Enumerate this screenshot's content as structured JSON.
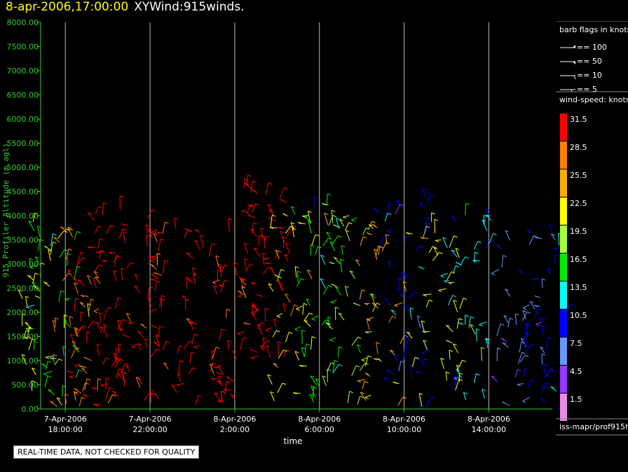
{
  "header": {
    "datetime": "8-apr-2006,17:00:00",
    "name": "XYWind:915winds."
  },
  "notice": "REAL-TIME DATA, NOT CHECKED FOR QUALITY",
  "legend": {
    "barb_title": "barb flags in knots",
    "barbs": [
      "== 100",
      "== 50",
      "== 10",
      "== 5"
    ],
    "speed_title": "wind-speed: knots",
    "speed_bins": [
      {
        "label": "31.5",
        "color": "#ff0000"
      },
      {
        "label": "28.5",
        "color": "#ff7f00"
      },
      {
        "label": "25.5",
        "color": "#ffaa00"
      },
      {
        "label": "22.5",
        "color": "#ffff00"
      },
      {
        "label": "19.5",
        "color": "#aaff33"
      },
      {
        "label": "16.5",
        "color": "#00ee00"
      },
      {
        "label": "13.5",
        "color": "#00ffff"
      },
      {
        "label": "10.5",
        "color": "#0000ff"
      },
      {
        "label": "7.5",
        "color": "#6699ff"
      },
      {
        "label": "4.5",
        "color": "#9933ff"
      },
      {
        "label": "1.5",
        "color": "#ee88ee"
      }
    ],
    "source": "iss-mapr/prof915h"
  },
  "chart_data": {
    "type": "scatter",
    "title": "8-apr-2006,17:00:00  XYWind:915winds.",
    "xlabel": "time",
    "ylabel": "915 Profiler Altitude (m agl)",
    "ylim": [
      0,
      8000
    ],
    "xlim": [
      "2006-04-07 16:50",
      "2006-04-08 17:00"
    ],
    "yticks": [
      "0.00",
      "500.00",
      "1000.00",
      "1500.00",
      "2000.00",
      "2500.00",
      "3000.00",
      "3500.00",
      "4000.00",
      "4500.00",
      "5000.00",
      "5500.00",
      "6000.00",
      "6500.00",
      "7000.00",
      "7500.00",
      "8000.00"
    ],
    "xticks": [
      {
        "date": "7-Apr-2006",
        "time": "18:00:00"
      },
      {
        "date": "7-Apr-2006",
        "time": "22:00:00"
      },
      {
        "date": "8-Apr-2006",
        "time": "2:00:00"
      },
      {
        "date": "8-Apr-2006",
        "time": "6:00:00"
      },
      {
        "date": "8-Apr-2006",
        "time": "10:00:00"
      },
      {
        "date": "8-Apr-2006",
        "time": "14:00:00"
      }
    ],
    "grid": "vertical lines at x ticks",
    "series": [
      {
        "name": "wind barbs (colored by wind speed, knots)",
        "points": [
          {
            "t": "2006-04-07 17:00",
            "z": 900,
            "spd": 22.5
          },
          {
            "t": "2006-04-07 17:30",
            "z": 700,
            "spd": 16.5
          },
          {
            "t": "2006-04-07 18:30",
            "z": 800,
            "spd": 28.5
          },
          {
            "t": "2006-04-07 19:30",
            "z": 1000,
            "spd": 31.5
          },
          {
            "t": "2006-04-07 20:30",
            "z": 1100,
            "spd": 31.5
          },
          {
            "t": "2006-04-07 21:30",
            "z": 1000,
            "spd": 31.5
          },
          {
            "t": "2006-04-07 23:00",
            "z": 700,
            "spd": 31.5
          },
          {
            "t": "2006-04-08 00:30",
            "z": 700,
            "spd": 31.5
          },
          {
            "t": "2006-04-08 02:30",
            "z": 800,
            "spd": 31.5
          },
          {
            "t": "2006-04-08 03:30",
            "z": 2800,
            "spd": 31.5
          },
          {
            "t": "2006-04-08 04:30",
            "z": 1000,
            "spd": 22.5
          },
          {
            "t": "2006-04-08 06:00",
            "z": 1200,
            "spd": 16.5
          },
          {
            "t": "2006-04-08 07:30",
            "z": 1000,
            "spd": 19.5
          },
          {
            "t": "2006-04-08 09:00",
            "z": 800,
            "spd": 25.5
          },
          {
            "t": "2006-04-08 10:00",
            "z": 1400,
            "spd": 10.5
          },
          {
            "t": "2006-04-08 11:30",
            "z": 900,
            "spd": 22.5
          },
          {
            "t": "2006-04-08 13:00",
            "z": 1100,
            "spd": 13.5
          },
          {
            "t": "2006-04-08 15:30",
            "z": 500,
            "spd": 7.5
          },
          {
            "t": "2006-04-08 16:30",
            "z": 700,
            "spd": 10.5
          }
        ]
      }
    ]
  }
}
